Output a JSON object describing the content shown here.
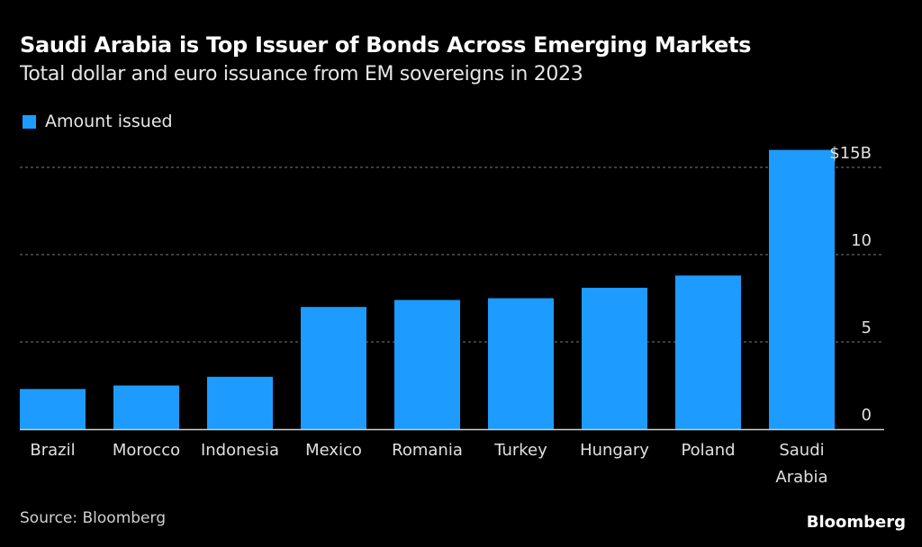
{
  "chart_data": {
    "type": "bar",
    "title": "Saudi Arabia is Top Issuer of Bonds Across Emerging Markets",
    "subtitle": "Total dollar and euro issuance from EM sovereigns in 2023",
    "legend": [
      {
        "name": "Amount issued",
        "color": "#1e9bff"
      }
    ],
    "legend_position": "top-left",
    "categories": [
      "Brazil",
      "Morocco",
      "Indonesia",
      "Mexico",
      "Romania",
      "Turkey",
      "Hungary",
      "Poland",
      "Saudi Arabia"
    ],
    "category_label_lines": [
      [
        "Brazil"
      ],
      [
        "Morocco"
      ],
      [
        "Indonesia"
      ],
      [
        "Mexico"
      ],
      [
        "Romania"
      ],
      [
        "Turkey"
      ],
      [
        "Hungary"
      ],
      [
        "Poland"
      ],
      [
        "Saudi",
        "Arabia"
      ]
    ],
    "series": [
      {
        "name": "Amount issued",
        "values": [
          2.3,
          2.5,
          3.0,
          7.0,
          7.4,
          7.5,
          8.1,
          8.8,
          16.0
        ]
      }
    ],
    "xlabel": "",
    "ylabel": "",
    "ylim": [
      0,
      16
    ],
    "yticks": [
      0,
      5,
      10,
      15
    ],
    "ytick_labels": [
      "0",
      "5",
      "10",
      "$15B"
    ],
    "y_axis_side": "right",
    "grid": true,
    "bar_color": "#1e9bff"
  },
  "footer": {
    "source": "Source: Bloomberg",
    "brand": "Bloomberg"
  }
}
